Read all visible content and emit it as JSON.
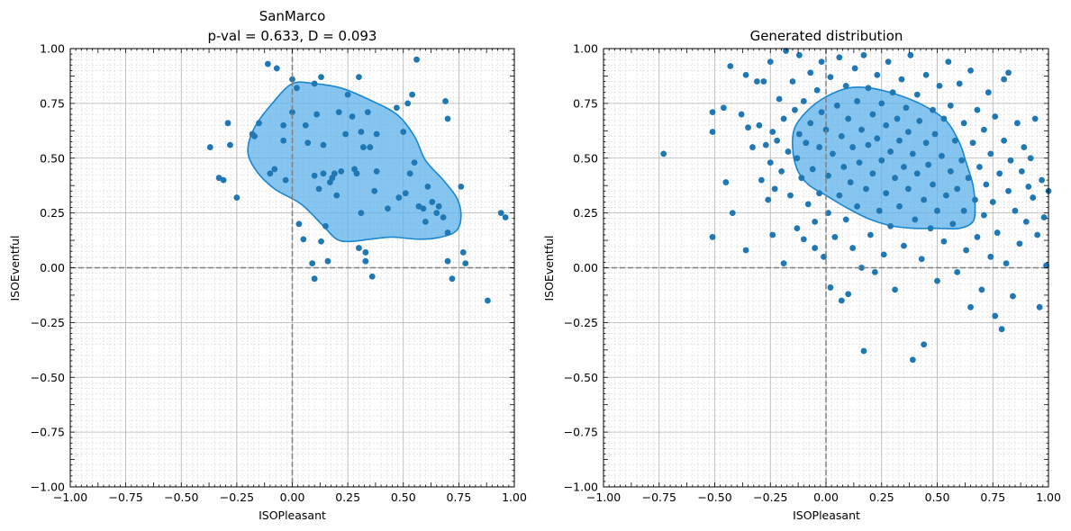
{
  "figure": {
    "panels": [
      {
        "title_lines": [
          "SanMarco",
          "p-val = 0.633, D = 0.093"
        ],
        "xlabel": "ISOPleasant",
        "ylabel": "ISOEventful"
      },
      {
        "title_lines": [
          "Generated distribution"
        ],
        "xlabel": "ISOPleasant",
        "ylabel": "ISOEventful"
      }
    ]
  },
  "colors": {
    "points": "#1f77b4",
    "kde_fill": "#5db2e9",
    "kde_edge": "#1a86d0",
    "zero_lines": "#808080",
    "major_grid": "#b0b0b0",
    "minor_grid": "#d9d9d9"
  },
  "chart_data": [
    {
      "type": "scatter",
      "title": "SanMarco\np-val = 0.633, D = 0.093",
      "xlabel": "ISOPleasant",
      "ylabel": "ISOEventful",
      "xlim": [
        -1,
        1
      ],
      "ylim": [
        -1,
        1
      ],
      "xticks": [
        "−1.00",
        "−0.75",
        "−0.50",
        "−0.25",
        "0.00",
        "0.25",
        "0.50",
        "0.75",
        "1.00"
      ],
      "yticks": [
        "−1.00",
        "−0.75",
        "−0.50",
        "−0.25",
        "0.00",
        "0.25",
        "0.50",
        "0.75",
        "1.00"
      ],
      "grid": true,
      "zero_lines": true,
      "points": [
        [
          -0.37,
          0.55
        ],
        [
          -0.33,
          0.41
        ],
        [
          -0.31,
          0.4
        ],
        [
          -0.29,
          0.66
        ],
        [
          -0.28,
          0.56
        ],
        [
          -0.25,
          0.32
        ],
        [
          -0.18,
          0.61
        ],
        [
          -0.17,
          0.6
        ],
        [
          -0.15,
          0.66
        ],
        [
          -0.11,
          0.93
        ],
        [
          -0.1,
          0.43
        ],
        [
          -0.08,
          0.45
        ],
        [
          -0.07,
          0.91
        ],
        [
          -0.04,
          0.65
        ],
        [
          -0.04,
          0.58
        ],
        [
          -0.03,
          0.4
        ],
        [
          0.0,
          0.86
        ],
        [
          0.0,
          0.71
        ],
        [
          0.02,
          0.82
        ],
        [
          0.03,
          0.2
        ],
        [
          0.05,
          0.13
        ],
        [
          0.06,
          0.65
        ],
        [
          0.07,
          0.57
        ],
        [
          0.09,
          0.02
        ],
        [
          0.1,
          -0.05
        ],
        [
          0.1,
          0.84
        ],
        [
          0.1,
          0.42
        ],
        [
          0.11,
          0.7
        ],
        [
          0.12,
          0.36
        ],
        [
          0.13,
          0.12
        ],
        [
          0.13,
          0.87
        ],
        [
          0.14,
          0.56
        ],
        [
          0.14,
          0.43
        ],
        [
          0.15,
          0.19
        ],
        [
          0.16,
          0.03
        ],
        [
          0.17,
          0.39
        ],
        [
          0.18,
          0.41
        ],
        [
          0.19,
          0.43
        ],
        [
          0.2,
          0.33
        ],
        [
          0.21,
          0.71
        ],
        [
          0.22,
          0.44
        ],
        [
          0.24,
          0.61
        ],
        [
          0.25,
          0.79
        ],
        [
          0.27,
          0.69
        ],
        [
          0.28,
          0.45
        ],
        [
          0.29,
          0.43
        ],
        [
          0.3,
          0.87
        ],
        [
          0.3,
          0.09
        ],
        [
          0.31,
          0.62
        ],
        [
          0.31,
          0.25
        ],
        [
          0.32,
          0.55
        ],
        [
          0.33,
          0.07
        ],
        [
          0.33,
          0.03
        ],
        [
          0.34,
          0.71
        ],
        [
          0.35,
          0.55
        ],
        [
          0.36,
          -0.04
        ],
        [
          0.37,
          0.35
        ],
        [
          0.38,
          0.61
        ],
        [
          0.38,
          0.44
        ],
        [
          0.43,
          0.27
        ],
        [
          0.47,
          0.73
        ],
        [
          0.48,
          0.32
        ],
        [
          0.5,
          0.62
        ],
        [
          0.51,
          0.34
        ],
        [
          0.52,
          0.75
        ],
        [
          0.53,
          0.43
        ],
        [
          0.54,
          0.79
        ],
        [
          0.55,
          0.48
        ],
        [
          0.56,
          0.95
        ],
        [
          0.57,
          0.28
        ],
        [
          0.59,
          0.27
        ],
        [
          0.6,
          0.21
        ],
        [
          0.61,
          0.37
        ],
        [
          0.63,
          0.3
        ],
        [
          0.65,
          0.25
        ],
        [
          0.66,
          0.28
        ],
        [
          0.68,
          0.23
        ],
        [
          0.69,
          0.76
        ],
        [
          0.7,
          0.68
        ],
        [
          0.7,
          0.03
        ],
        [
          0.7,
          0.16
        ],
        [
          0.72,
          -0.05
        ],
        [
          0.76,
          0.37
        ],
        [
          0.77,
          0.07
        ],
        [
          0.78,
          0.02
        ],
        [
          0.88,
          -0.15
        ],
        [
          0.94,
          0.25
        ],
        [
          0.96,
          0.23
        ]
      ],
      "kde_contour": [
        [
          0.0,
          0.84
        ],
        [
          0.1,
          0.84
        ],
        [
          0.22,
          0.82
        ],
        [
          0.34,
          0.77
        ],
        [
          0.47,
          0.7
        ],
        [
          0.55,
          0.6
        ],
        [
          0.6,
          0.49
        ],
        [
          0.68,
          0.4
        ],
        [
          0.74,
          0.32
        ],
        [
          0.76,
          0.24
        ],
        [
          0.74,
          0.17
        ],
        [
          0.67,
          0.14
        ],
        [
          0.57,
          0.13
        ],
        [
          0.45,
          0.14
        ],
        [
          0.35,
          0.13
        ],
        [
          0.26,
          0.12
        ],
        [
          0.2,
          0.13
        ],
        [
          0.14,
          0.19
        ],
        [
          0.04,
          0.29
        ],
        [
          -0.08,
          0.36
        ],
        [
          -0.16,
          0.44
        ],
        [
          -0.2,
          0.53
        ],
        [
          -0.17,
          0.64
        ],
        [
          -0.09,
          0.75
        ]
      ]
    },
    {
      "type": "scatter",
      "title": "Generated distribution",
      "xlabel": "ISOPleasant",
      "ylabel": "ISOEventful",
      "xlim": [
        -1,
        1
      ],
      "ylim": [
        -1,
        1
      ],
      "xticks": [
        "−1.00",
        "−0.75",
        "−0.50",
        "−0.25",
        "0.00",
        "0.25",
        "0.50",
        "0.75",
        "1.00"
      ],
      "yticks": [
        "−1.00",
        "−0.75",
        "−0.50",
        "−0.25",
        "0.00",
        "0.25",
        "0.50",
        "0.75",
        "1.00"
      ],
      "grid": true,
      "zero_lines": true,
      "points": [
        [
          -0.73,
          0.52
        ],
        [
          -0.51,
          0.71
        ],
        [
          -0.51,
          0.62
        ],
        [
          -0.51,
          0.14
        ],
        [
          -0.46,
          0.73
        ],
        [
          -0.45,
          0.39
        ],
        [
          -0.43,
          0.92
        ],
        [
          -0.42,
          0.25
        ],
        [
          -0.38,
          0.7
        ],
        [
          -0.36,
          0.88
        ],
        [
          -0.36,
          0.08
        ],
        [
          -0.35,
          0.64
        ],
        [
          -0.33,
          0.55
        ],
        [
          -0.31,
          0.85
        ],
        [
          -0.3,
          0.65
        ],
        [
          -0.29,
          0.4
        ],
        [
          -0.28,
          0.85
        ],
        [
          -0.27,
          0.56
        ],
        [
          -0.26,
          0.31
        ],
        [
          -0.25,
          0.94
        ],
        [
          -0.25,
          0.48
        ],
        [
          -0.24,
          0.62
        ],
        [
          -0.24,
          0.15
        ],
        [
          -0.23,
          0.36
        ],
        [
          -0.22,
          0.58
        ],
        [
          -0.21,
          0.77
        ],
        [
          -0.2,
          0.44
        ],
        [
          -0.19,
          0.68
        ],
        [
          -0.19,
          0.02
        ],
        [
          -0.18,
          0.99
        ],
        [
          -0.17,
          0.53
        ],
        [
          -0.16,
          0.33
        ],
        [
          -0.15,
          0.85
        ],
        [
          -0.14,
          0.72
        ],
        [
          -0.13,
          0.5
        ],
        [
          -0.13,
          0.18
        ],
        [
          -0.12,
          0.97
        ],
        [
          -0.12,
          0.61
        ],
        [
          -0.11,
          0.41
        ],
        [
          -0.1,
          0.76
        ],
        [
          -0.1,
          0.13
        ],
        [
          -0.09,
          0.57
        ],
        [
          -0.08,
          0.29
        ],
        [
          -0.07,
          0.89
        ],
        [
          -0.07,
          0.66
        ],
        [
          -0.06,
          0.45
        ],
        [
          -0.05,
          0.21
        ],
        [
          -0.05,
          0.09
        ],
        [
          -0.04,
          0.81
        ],
        [
          -0.03,
          0.55
        ],
        [
          -0.03,
          0.34
        ],
        [
          -0.02,
          0.94
        ],
        [
          -0.02,
          0.71
        ],
        [
          -0.01,
          0.05
        ],
        [
          0.0,
          0.63
        ],
        [
          0.01,
          0.42
        ],
        [
          0.01,
          0.25
        ],
        [
          0.02,
          -0.09
        ],
        [
          0.02,
          0.87
        ],
        [
          0.03,
          0.52
        ],
        [
          0.04,
          0.14
        ],
        [
          0.05,
          0.74
        ],
        [
          0.06,
          0.33
        ],
        [
          0.06,
          0.96
        ],
        [
          0.07,
          -0.15
        ],
        [
          0.07,
          0.6
        ],
        [
          0.08,
          0.46
        ],
        [
          0.09,
          0.22
        ],
        [
          0.09,
          0.83
        ],
        [
          0.1,
          0.68
        ],
        [
          0.1,
          -0.12
        ],
        [
          0.11,
          0.39
        ],
        [
          0.12,
          0.55
        ],
        [
          0.12,
          0.09
        ],
        [
          0.13,
          0.91
        ],
        [
          0.14,
          0.76
        ],
        [
          0.14,
          0.28
        ],
        [
          0.15,
          0.48
        ],
        [
          0.16,
          0.63
        ],
        [
          0.16,
          0.0
        ],
        [
          0.17,
          0.97
        ],
        [
          0.17,
          -0.38
        ],
        [
          0.18,
          0.36
        ],
        [
          0.19,
          0.82
        ],
        [
          0.19,
          0.56
        ],
        [
          0.2,
          0.15
        ],
        [
          0.21,
          0.7
        ],
        [
          0.21,
          0.43
        ],
        [
          0.22,
          -0.02
        ],
        [
          0.23,
          0.88
        ],
        [
          0.23,
          0.59
        ],
        [
          0.24,
          0.26
        ],
        [
          0.25,
          0.75
        ],
        [
          0.25,
          0.49
        ],
        [
          0.26,
          0.06
        ],
        [
          0.27,
          0.65
        ],
        [
          0.27,
          0.34
        ],
        [
          0.28,
          0.94
        ],
        [
          0.29,
          0.53
        ],
        [
          0.29,
          0.19
        ],
        [
          0.3,
          0.8
        ],
        [
          0.31,
          0.41
        ],
        [
          0.31,
          -0.1
        ],
        [
          0.32,
          0.68
        ],
        [
          0.33,
          0.28
        ],
        [
          0.33,
          0.58
        ],
        [
          0.34,
          0.86
        ],
        [
          0.35,
          0.46
        ],
        [
          0.35,
          0.1
        ],
        [
          0.36,
          0.73
        ],
        [
          0.37,
          0.36
        ],
        [
          0.37,
          0.62
        ],
        [
          0.38,
          0.97
        ],
        [
          0.39,
          0.52
        ],
        [
          0.39,
          -0.42
        ],
        [
          0.4,
          0.22
        ],
        [
          0.41,
          0.79
        ],
        [
          0.41,
          0.43
        ],
        [
          0.42,
          0.67
        ],
        [
          0.43,
          0.04
        ],
        [
          0.44,
          -0.35
        ],
        [
          0.44,
          0.31
        ],
        [
          0.45,
          0.57
        ],
        [
          0.45,
          0.88
        ],
        [
          0.46,
          0.47
        ],
        [
          0.47,
          0.18
        ],
        [
          0.48,
          0.72
        ],
        [
          0.48,
          0.38
        ],
        [
          0.49,
          0.61
        ],
        [
          0.5,
          -0.06
        ],
        [
          0.5,
          0.26
        ],
        [
          0.51,
          0.83
        ],
        [
          0.52,
          0.51
        ],
        [
          0.53,
          0.12
        ],
        [
          0.53,
          0.68
        ],
        [
          0.54,
          0.33
        ],
        [
          0.55,
          0.94
        ],
        [
          0.56,
          0.44
        ],
        [
          0.56,
          0.74
        ],
        [
          0.57,
          0.2
        ],
        [
          0.58,
          0.58
        ],
        [
          0.59,
          -0.02
        ],
        [
          0.59,
          0.36
        ],
        [
          0.6,
          0.84
        ],
        [
          0.61,
          0.49
        ],
        [
          0.62,
          0.26
        ],
        [
          0.62,
          0.66
        ],
        [
          0.63,
          0.08
        ],
        [
          0.64,
          0.41
        ],
        [
          0.65,
          0.9
        ],
        [
          0.65,
          -0.18
        ],
        [
          0.66,
          0.57
        ],
        [
          0.67,
          0.31
        ],
        [
          0.68,
          0.72
        ],
        [
          0.68,
          0.14
        ],
        [
          0.69,
          0.46
        ],
        [
          0.7,
          -0.1
        ],
        [
          0.71,
          0.24
        ],
        [
          0.71,
          0.63
        ],
        [
          0.72,
          0.38
        ],
        [
          0.73,
          0.8
        ],
        [
          0.74,
          0.05
        ],
        [
          0.74,
          0.52
        ],
        [
          0.75,
          0.3
        ],
        [
          0.76,
          -0.22
        ],
        [
          0.76,
          0.69
        ],
        [
          0.77,
          0.16
        ],
        [
          0.78,
          0.43
        ],
        [
          0.79,
          -0.28
        ],
        [
          0.8,
          0.58
        ],
        [
          0.8,
          0.86
        ],
        [
          0.81,
          0.02
        ],
        [
          0.82,
          0.35
        ],
        [
          0.82,
          0.89
        ],
        [
          0.83,
          0.49
        ],
        [
          0.84,
          -0.13
        ],
        [
          0.85,
          0.26
        ],
        [
          0.86,
          0.66
        ],
        [
          0.87,
          0.11
        ],
        [
          0.88,
          0.44
        ],
        [
          0.89,
          0.55
        ],
        [
          0.9,
          0.21
        ],
        [
          0.91,
          0.37
        ],
        [
          0.92,
          0.5
        ],
        [
          0.93,
          0.32
        ],
        [
          0.94,
          0.68
        ],
        [
          0.95,
          0.15
        ],
        [
          0.96,
          -0.18
        ],
        [
          0.97,
          0.4
        ],
        [
          0.98,
          0.23
        ],
        [
          0.99,
          0.01
        ],
        [
          1.0,
          0.35
        ]
      ],
      "kde_contour": [
        [
          0.0,
          0.78
        ],
        [
          0.1,
          0.82
        ],
        [
          0.2,
          0.82
        ],
        [
          0.32,
          0.79
        ],
        [
          0.44,
          0.74
        ],
        [
          0.54,
          0.67
        ],
        [
          0.6,
          0.57
        ],
        [
          0.63,
          0.48
        ],
        [
          0.66,
          0.38
        ],
        [
          0.67,
          0.28
        ],
        [
          0.66,
          0.21
        ],
        [
          0.6,
          0.18
        ],
        [
          0.5,
          0.18
        ],
        [
          0.4,
          0.18
        ],
        [
          0.3,
          0.19
        ],
        [
          0.2,
          0.22
        ],
        [
          0.1,
          0.27
        ],
        [
          0.0,
          0.33
        ],
        [
          -0.08,
          0.38
        ],
        [
          -0.13,
          0.45
        ],
        [
          -0.15,
          0.55
        ],
        [
          -0.14,
          0.64
        ],
        [
          -0.08,
          0.72
        ]
      ]
    }
  ]
}
